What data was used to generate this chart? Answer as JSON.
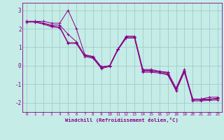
{
  "xlabel": "Windchill (Refroidissement éolien,°C)",
  "background_color": "#c5ece6",
  "grid_color": "#a0cccc",
  "line_color": "#880088",
  "xlim": [
    -0.5,
    23.5
  ],
  "ylim": [
    -2.5,
    3.4
  ],
  "yticks": [
    -2,
    -1,
    0,
    1,
    2,
    3
  ],
  "xticks": [
    0,
    1,
    2,
    3,
    4,
    5,
    6,
    7,
    8,
    9,
    10,
    11,
    12,
    13,
    14,
    15,
    16,
    17,
    18,
    19,
    20,
    21,
    22,
    23
  ],
  "series": [
    [
      2.4,
      2.4,
      2.4,
      2.3,
      2.3,
      3.0,
      2.0,
      0.6,
      0.5,
      -0.1,
      0.0,
      0.9,
      1.6,
      1.6,
      -0.2,
      -0.2,
      -0.3,
      -0.35,
      -1.2,
      -0.2,
      -1.8,
      -1.8,
      -1.7,
      -1.7
    ],
    [
      2.4,
      2.4,
      2.3,
      2.2,
      2.2,
      1.7,
      1.3,
      0.55,
      0.5,
      -0.05,
      0.0,
      0.9,
      1.5,
      1.5,
      -0.25,
      -0.25,
      -0.3,
      -0.4,
      -1.3,
      -0.25,
      -1.8,
      -1.8,
      -1.8,
      -1.75
    ],
    [
      2.4,
      2.4,
      2.3,
      2.15,
      2.1,
      1.25,
      1.25,
      0.55,
      0.45,
      -0.1,
      0.0,
      0.9,
      1.55,
      1.55,
      -0.3,
      -0.3,
      -0.35,
      -0.45,
      -1.3,
      -0.3,
      -1.85,
      -1.85,
      -1.82,
      -1.8
    ],
    [
      2.35,
      2.35,
      2.25,
      2.1,
      2.05,
      1.2,
      1.2,
      0.5,
      0.4,
      -0.15,
      -0.05,
      0.85,
      1.5,
      1.5,
      -0.35,
      -0.35,
      -0.4,
      -0.5,
      -1.35,
      -0.35,
      -1.9,
      -1.9,
      -1.87,
      -1.85
    ]
  ]
}
